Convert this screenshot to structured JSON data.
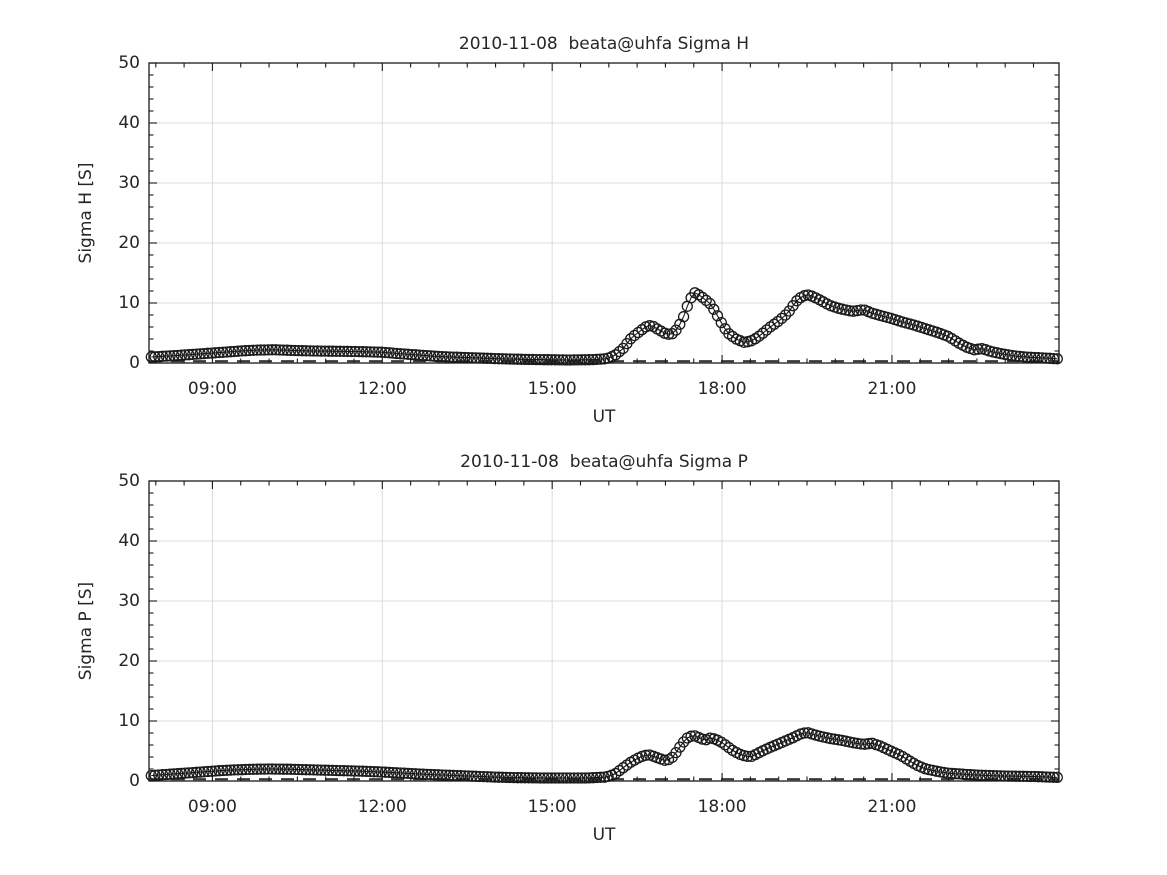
{
  "figure": {
    "background": "#ffffff",
    "axis_color": "#1a1a1a",
    "grid_color": "#dcdcdc",
    "text_color": "#262626",
    "marker_style": "open-circle",
    "baseline_style": "dashed"
  },
  "chart_data": [
    {
      "type": "scatter",
      "title": "2010-11-08  beata@uhfa Sigma H",
      "xlabel": "UT",
      "ylabel": "Sigma H [S]",
      "xlim_hours": [
        7.88,
        23.95
      ],
      "ylim": [
        0,
        50
      ],
      "yticks": [
        0,
        10,
        20,
        30,
        40,
        50
      ],
      "y_minor_step": 2,
      "xticks": [
        {
          "hour": 9,
          "label": "09:00"
        },
        {
          "hour": 12,
          "label": "12:00"
        },
        {
          "hour": 15,
          "label": "15:00"
        },
        {
          "hour": 18,
          "label": "18:00"
        },
        {
          "hour": 21,
          "label": "21:00"
        }
      ],
      "x_minor_step_hours": 0.5,
      "grid": true,
      "legend": "none",
      "baseline_dashed_y": 0.3,
      "sample_minutes": 4,
      "keyframes": [
        [
          7.92,
          1.0
        ],
        [
          8.1,
          1.1
        ],
        [
          8.3,
          1.2
        ],
        [
          8.6,
          1.4
        ],
        [
          8.9,
          1.6
        ],
        [
          9.2,
          1.8
        ],
        [
          9.5,
          2.0
        ],
        [
          9.8,
          2.15
        ],
        [
          10.1,
          2.2
        ],
        [
          10.4,
          2.1
        ],
        [
          10.8,
          2.0
        ],
        [
          11.2,
          1.95
        ],
        [
          11.6,
          1.9
        ],
        [
          12.0,
          1.8
        ],
        [
          12.3,
          1.55
        ],
        [
          12.6,
          1.35
        ],
        [
          12.9,
          1.15
        ],
        [
          13.2,
          1.0
        ],
        [
          13.5,
          0.9
        ],
        [
          13.8,
          0.8
        ],
        [
          14.1,
          0.7
        ],
        [
          14.5,
          0.6
        ],
        [
          14.9,
          0.55
        ],
        [
          15.3,
          0.5
        ],
        [
          15.7,
          0.55
        ],
        [
          15.95,
          0.7
        ],
        [
          16.1,
          1.2
        ],
        [
          16.25,
          2.4
        ],
        [
          16.4,
          4.2
        ],
        [
          16.55,
          5.3
        ],
        [
          16.65,
          6.0
        ],
        [
          16.75,
          6.3
        ],
        [
          16.85,
          5.7
        ],
        [
          17.0,
          4.9
        ],
        [
          17.1,
          4.7
        ],
        [
          17.2,
          5.6
        ],
        [
          17.3,
          7.2
        ],
        [
          17.4,
          9.8
        ],
        [
          17.5,
          11.8
        ],
        [
          17.6,
          11.3
        ],
        [
          17.7,
          10.6
        ],
        [
          17.8,
          9.8
        ],
        [
          17.9,
          8.2
        ],
        [
          18.0,
          6.5
        ],
        [
          18.1,
          5.0
        ],
        [
          18.25,
          4.0
        ],
        [
          18.4,
          3.4
        ],
        [
          18.55,
          3.8
        ],
        [
          18.7,
          4.8
        ],
        [
          18.85,
          6.0
        ],
        [
          19.0,
          7.0
        ],
        [
          19.1,
          7.8
        ],
        [
          19.2,
          8.8
        ],
        [
          19.3,
          10.2
        ],
        [
          19.4,
          11.0
        ],
        [
          19.5,
          11.4
        ],
        [
          19.6,
          11.1
        ],
        [
          19.75,
          10.4
        ],
        [
          19.9,
          9.6
        ],
        [
          20.1,
          9.0
        ],
        [
          20.3,
          8.6
        ],
        [
          20.5,
          8.9
        ],
        [
          20.65,
          8.3
        ],
        [
          20.8,
          7.9
        ],
        [
          21.0,
          7.4
        ],
        [
          21.2,
          6.8
        ],
        [
          21.4,
          6.3
        ],
        [
          21.6,
          5.7
        ],
        [
          21.8,
          5.1
        ],
        [
          22.0,
          4.4
        ],
        [
          22.15,
          3.5
        ],
        [
          22.3,
          2.7
        ],
        [
          22.45,
          2.2
        ],
        [
          22.6,
          2.4
        ],
        [
          22.75,
          1.9
        ],
        [
          22.95,
          1.5
        ],
        [
          23.15,
          1.2
        ],
        [
          23.35,
          1.0
        ],
        [
          23.55,
          0.9
        ],
        [
          23.75,
          0.8
        ],
        [
          23.92,
          0.7
        ]
      ]
    },
    {
      "type": "scatter",
      "title": "2010-11-08  beata@uhfa Sigma P",
      "xlabel": "UT",
      "ylabel": "Sigma P [S]",
      "xlim_hours": [
        7.88,
        23.95
      ],
      "ylim": [
        0,
        50
      ],
      "yticks": [
        0,
        10,
        20,
        30,
        40,
        50
      ],
      "y_minor_step": 2,
      "xticks": [
        {
          "hour": 9,
          "label": "09:00"
        },
        {
          "hour": 12,
          "label": "12:00"
        },
        {
          "hour": 15,
          "label": "15:00"
        },
        {
          "hour": 18,
          "label": "18:00"
        },
        {
          "hour": 21,
          "label": "21:00"
        }
      ],
      "x_minor_step_hours": 0.5,
      "grid": true,
      "legend": "none",
      "baseline_dashed_y": 0.3,
      "sample_minutes": 4,
      "keyframes": [
        [
          7.92,
          0.9
        ],
        [
          8.2,
          1.1
        ],
        [
          8.5,
          1.3
        ],
        [
          8.8,
          1.5
        ],
        [
          9.1,
          1.7
        ],
        [
          9.4,
          1.85
        ],
        [
          9.7,
          1.95
        ],
        [
          10.0,
          2.0
        ],
        [
          10.4,
          1.95
        ],
        [
          10.8,
          1.85
        ],
        [
          11.2,
          1.75
        ],
        [
          11.6,
          1.65
        ],
        [
          12.0,
          1.5
        ],
        [
          12.4,
          1.3
        ],
        [
          12.8,
          1.1
        ],
        [
          13.2,
          0.95
        ],
        [
          13.6,
          0.8
        ],
        [
          14.0,
          0.65
        ],
        [
          14.4,
          0.55
        ],
        [
          14.8,
          0.5
        ],
        [
          15.2,
          0.5
        ],
        [
          15.6,
          0.5
        ],
        [
          15.95,
          0.65
        ],
        [
          16.1,
          1.1
        ],
        [
          16.25,
          2.2
        ],
        [
          16.4,
          3.2
        ],
        [
          16.55,
          4.0
        ],
        [
          16.7,
          4.4
        ],
        [
          16.85,
          3.9
        ],
        [
          17.0,
          3.4
        ],
        [
          17.1,
          3.7
        ],
        [
          17.2,
          4.9
        ],
        [
          17.3,
          6.3
        ],
        [
          17.4,
          7.3
        ],
        [
          17.5,
          7.6
        ],
        [
          17.6,
          7.2
        ],
        [
          17.7,
          6.8
        ],
        [
          17.8,
          7.2
        ],
        [
          17.9,
          6.9
        ],
        [
          18.0,
          6.4
        ],
        [
          18.1,
          5.7
        ],
        [
          18.2,
          5.0
        ],
        [
          18.35,
          4.3
        ],
        [
          18.5,
          4.0
        ],
        [
          18.65,
          4.7
        ],
        [
          18.8,
          5.4
        ],
        [
          18.95,
          6.0
        ],
        [
          19.1,
          6.6
        ],
        [
          19.25,
          7.2
        ],
        [
          19.4,
          7.9
        ],
        [
          19.5,
          8.1
        ],
        [
          19.6,
          7.8
        ],
        [
          19.75,
          7.4
        ],
        [
          19.9,
          7.1
        ],
        [
          20.1,
          6.8
        ],
        [
          20.3,
          6.4
        ],
        [
          20.5,
          6.1
        ],
        [
          20.65,
          6.3
        ],
        [
          20.8,
          5.8
        ],
        [
          21.0,
          4.9
        ],
        [
          21.15,
          4.3
        ],
        [
          21.3,
          3.4
        ],
        [
          21.45,
          2.6
        ],
        [
          21.6,
          2.0
        ],
        [
          21.8,
          1.6
        ],
        [
          22.0,
          1.3
        ],
        [
          22.3,
          1.1
        ],
        [
          22.6,
          0.95
        ],
        [
          22.9,
          0.85
        ],
        [
          23.2,
          0.8
        ],
        [
          23.5,
          0.75
        ],
        [
          23.92,
          0.6
        ]
      ]
    }
  ]
}
